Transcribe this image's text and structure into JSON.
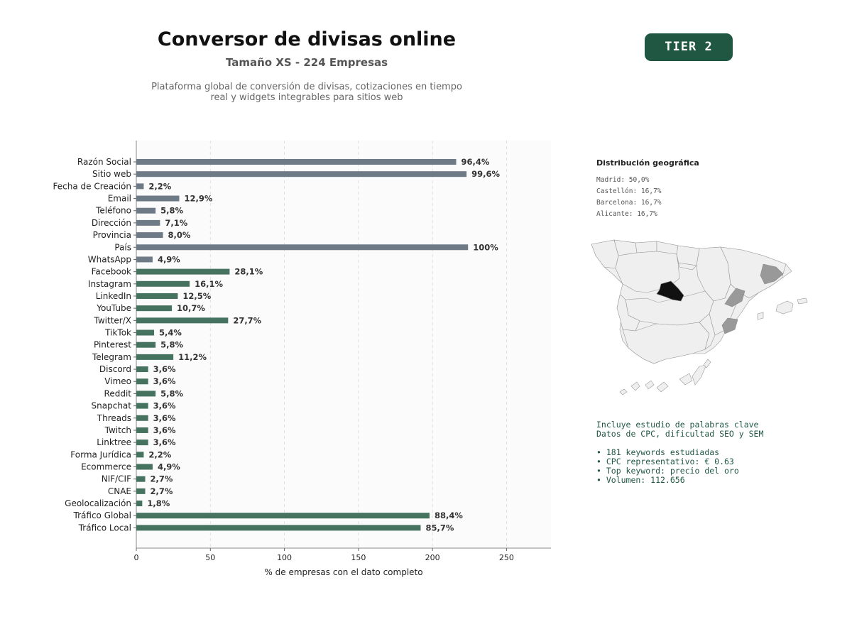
{
  "header": {
    "title": "Conversor de divisas online",
    "subtitle": "Tamaño XS - 224 Empresas",
    "description_line1": "Plataforma global de conversión de divisas, cotizaciones en tiempo",
    "description_line2": "real y widgets integrables para sitios web",
    "tier_badge": "TIER 2"
  },
  "chart_data": {
    "type": "bar",
    "orientation": "horizontal",
    "xlabel": "% de empresas con el dato completo",
    "xlim": [
      0,
      280
    ],
    "xticks": [
      0,
      50,
      100,
      150,
      200,
      250
    ],
    "grid": true,
    "colors": {
      "general": "#6e7b87",
      "social": "#457360"
    },
    "categories": [
      "Razón Social",
      "Sitio web",
      "Fecha de Creación",
      "Email",
      "Teléfono",
      "Dirección",
      "Provincia",
      "País",
      "WhatsApp",
      "Facebook",
      "Instagram",
      "LinkedIn",
      "YouTube",
      "Twitter/X",
      "TikTok",
      "Pinterest",
      "Telegram",
      "Discord",
      "Vimeo",
      "Reddit",
      "Snapchat",
      "Threads",
      "Twitch",
      "Linktree",
      "Forma Jurídica",
      "Ecommerce",
      "NIF/CIF",
      "CNAE",
      "Geolocalización",
      "Tráfico Global",
      "Tráfico Local"
    ],
    "values": [
      216,
      223,
      5,
      29,
      13,
      16,
      18,
      224,
      11,
      63,
      36,
      28,
      24,
      62,
      12,
      13,
      25,
      8,
      8,
      13,
      8,
      8,
      8,
      8,
      5,
      11,
      6,
      6,
      4,
      198,
      192
    ],
    "labels": [
      "96,4%",
      "99,6%",
      "2,2%",
      "12,9%",
      "5,8%",
      "7,1%",
      "8,0%",
      "100%",
      "4,9%",
      "28,1%",
      "16,1%",
      "12,5%",
      "10,7%",
      "27,7%",
      "5,4%",
      "5,8%",
      "11,2%",
      "3,6%",
      "3,6%",
      "5,8%",
      "3,6%",
      "3,6%",
      "3,6%",
      "3,6%",
      "2,2%",
      "4,9%",
      "2,7%",
      "2,7%",
      "1,8%",
      "88,4%",
      "85,7%"
    ],
    "groups": [
      "general",
      "general",
      "general",
      "general",
      "general",
      "general",
      "general",
      "general",
      "general",
      "social",
      "social",
      "social",
      "social",
      "social",
      "social",
      "social",
      "social",
      "social",
      "social",
      "social",
      "social",
      "social",
      "social",
      "social",
      "social",
      "social",
      "social",
      "social",
      "social",
      "social",
      "social"
    ]
  },
  "geo": {
    "title": "Distribución geográfica",
    "items": [
      "Madrid: 50,0%",
      "Castellón: 16,7%",
      "Barcelona: 16,7%",
      "Alicante: 16,7%"
    ],
    "colors": {
      "base": "#efefef",
      "border": "#999999",
      "madrid": "#111111",
      "others": "#999999"
    }
  },
  "keywords": {
    "line1": "Incluye estudio de palabras clave",
    "line2": "Datos de CPC, dificultad SEO y SEM",
    "bullets": [
      "• 181 keywords estudiadas",
      "• CPC representativo: € 0.63",
      "• Top keyword: precio del oro",
      "• Volumen: 112.656"
    ]
  }
}
